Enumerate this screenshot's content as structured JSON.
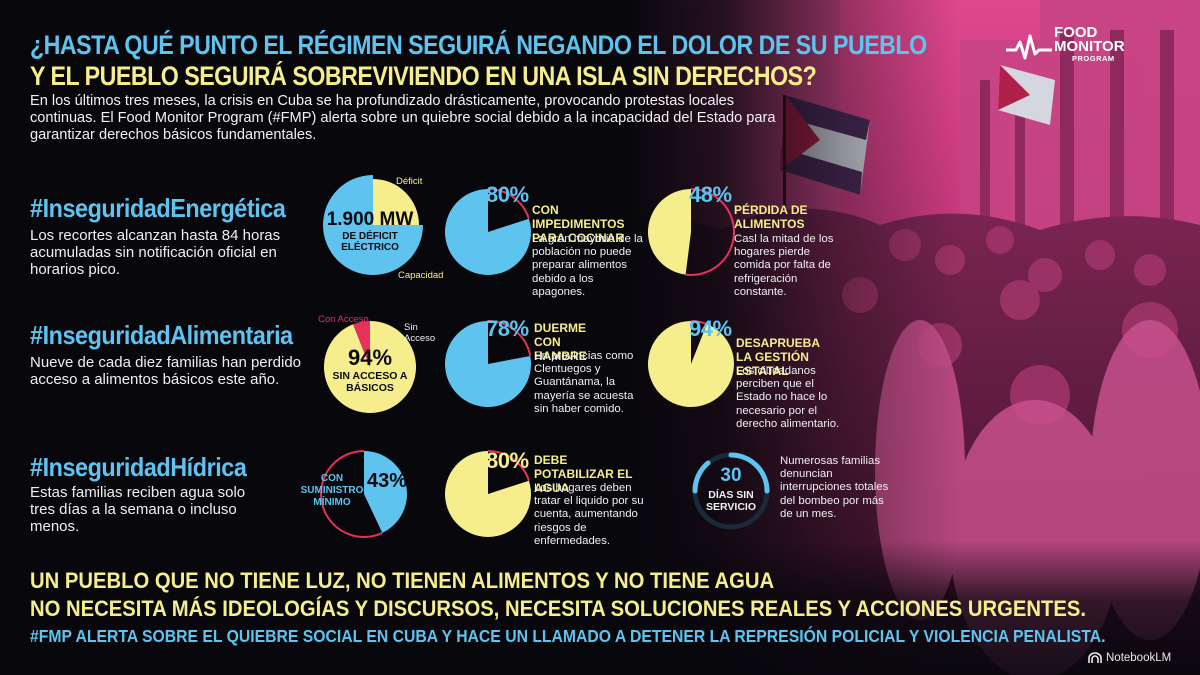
{
  "colors": {
    "background": "#07070c",
    "accent_blue": "#5ec4ef",
    "accent_yellow": "#f6ee8c",
    "accent_red": "#e8305a",
    "photo_magenta": "#b83a78",
    "text_light": "#f0f0f0"
  },
  "header": {
    "title_line1": "¿HASTA QUÉ PUNTO EL RÉGIMEN SEGUIRÁ NEGANDO EL DOLOR DE SU PUEBLO",
    "title_line2": "Y EL PUEBLO SEGUIRÁ SOBREVIVIENDO EN UNA ISLA SIN DERECHOS?",
    "intro": "En los últimos tres meses, la crisis en Cuba se ha profundizado drásticamente, provocando protestas locales continuas. El Food Monitor Program (#FMP) alerta sobre un quiebre social debido a la incapacidad del Estado para garantizar derechos básicos fundamentales."
  },
  "logo": {
    "icon": "heartbeat-line-icon",
    "line1": "FOOD",
    "line2": "MONITOR",
    "line3": "PROGRAM"
  },
  "sections": {
    "energy": {
      "title": "#InseguridadEnergética",
      "body": "Los recortes alcanzan hasta 84 horas acumuladas sin notificación oficial en horarios pico.",
      "main_chart": {
        "value_text": "1.900 MW",
        "caption": "DE DÉFICIT ELÉCTRICO",
        "label_top": "Déficit",
        "label_bottom": "Capacidad",
        "fraction_deficit": 0.25
      },
      "stat1": {
        "pct": "80%",
        "fraction": 0.8,
        "heading": "CON IMPEDIMENTOS PARA COCINAR",
        "body": "La gran mayoría de la población no puede preparar alimentos debido a los apagones."
      },
      "stat2": {
        "pct": "48%",
        "fraction": 0.48,
        "heading": "PÉRDIDA DE ALIMENTOS",
        "body": "Casl la mitad de los hogares pierde comida por falta de refrigeración constante."
      }
    },
    "food": {
      "title": "#InseguridadAlimentaria",
      "body": "Nueve de cada diez familias han perdido acceso a alimentos básicos este año.",
      "main_chart": {
        "value_text": "94%",
        "caption": "SIN ACCESO A BÁSICOS",
        "label_with": "Con Acceso",
        "label_without": "Sin Acceso",
        "fraction_without": 0.94
      },
      "stat1": {
        "pct": "78%",
        "fraction": 0.78,
        "heading": "DUERME CON HAMBRE",
        "body": "En provincias como Clentuegos y Guantánama, la mayería se acuesta sin haber comido."
      },
      "stat2": {
        "pct": "94%",
        "fraction": 0.94,
        "heading": "DESAPRUEBA LA GESTIÓN ESTATAL",
        "body": "Los ciudadanos perciben que el Estado no hace lo necesario por el derecho alimentario."
      }
    },
    "water": {
      "title": "#InseguridadHídrica",
      "body": "Estas familias reciben agua solo tres días a la semana o incluso menos.",
      "main_chart": {
        "value_text": "43%",
        "caption": "CON SUMINISTRO MÍNIMO",
        "fraction": 0.43
      },
      "stat1": {
        "pct": "80%",
        "fraction": 0.8,
        "heading": "DEBE POTABILIZAR EL AGUA",
        "body": "Los hogares deben tratar el liquido por su cuenta, aumentando riesgos de enfermedades."
      },
      "stat2": {
        "value": "30",
        "caption": "DÍAS SIN SERVICIO",
        "body": "Numerosas familias denuncian interrupciones totales del bombeo por más de un mes."
      }
    }
  },
  "closing": {
    "line1": "UN PUEBLO QUE NO TIENE LUZ, NO TIENEN ALIMENTOS Y NO TIENE AGUA",
    "line2": "NO NECESITA MÁS IDEOLOGÍAS Y DISCURSOS, NECESITA SOLUCIONES REALES Y ACCIONES URGENTES.",
    "line3": "#FMP ALERTA SOBRE EL QUIEBRE SOCIAL EN CUBA Y HACE UN LLAMADO A DETENER LA REPRESIÓN POLICIAL Y VIOLENCIA PENALISTA."
  },
  "watermark": {
    "icon": "notebooklm-icon",
    "text": "NotebookLM"
  }
}
